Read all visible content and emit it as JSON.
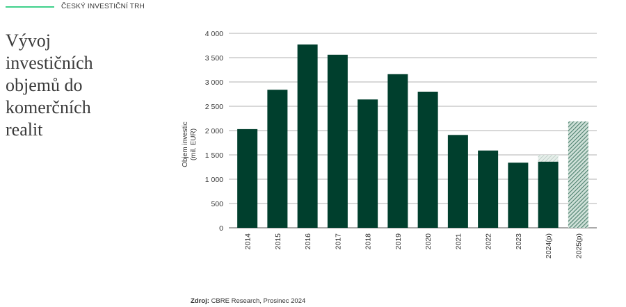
{
  "header": {
    "section_label": "ČESKÝ INVESTIČNÍ TRH"
  },
  "title": "Vývoj investičních objemů do komerčních realit",
  "source": {
    "label": "Zdroj:",
    "text": "CBRE Research, Prosinec 2024"
  },
  "colors": {
    "bar": "#003f2d",
    "accent": "#3fd08a",
    "grid": "#999999",
    "projection_hatch": "#4a7f6c"
  },
  "chart_data": {
    "type": "bar",
    "ylabel_lines": [
      "Objem investic",
      "(mil. EUR)"
    ],
    "ylim": [
      0,
      4000
    ],
    "y_ticks": [
      0,
      500,
      1000,
      1500,
      2000,
      2500,
      3000,
      3500,
      4000
    ],
    "y_tick_labels": [
      "0",
      "500",
      "1 000",
      "1 500",
      "2 000",
      "2 500",
      "3 000",
      "3 500",
      "4 000"
    ],
    "categories": [
      "2014",
      "2015",
      "2016",
      "2017",
      "2018",
      "2019",
      "2020",
      "2021",
      "2022",
      "2023",
      "2024(p)",
      "2025(p)"
    ],
    "values": [
      2030,
      2840,
      3770,
      3560,
      2640,
      3160,
      2800,
      1910,
      1590,
      1340,
      1360,
      2190
    ],
    "projection_extra": [
      0,
      0,
      0,
      0,
      0,
      0,
      0,
      0,
      0,
      0,
      140,
      0
    ],
    "projected": [
      false,
      false,
      false,
      false,
      false,
      false,
      false,
      false,
      false,
      false,
      false,
      true
    ],
    "grid": true
  }
}
